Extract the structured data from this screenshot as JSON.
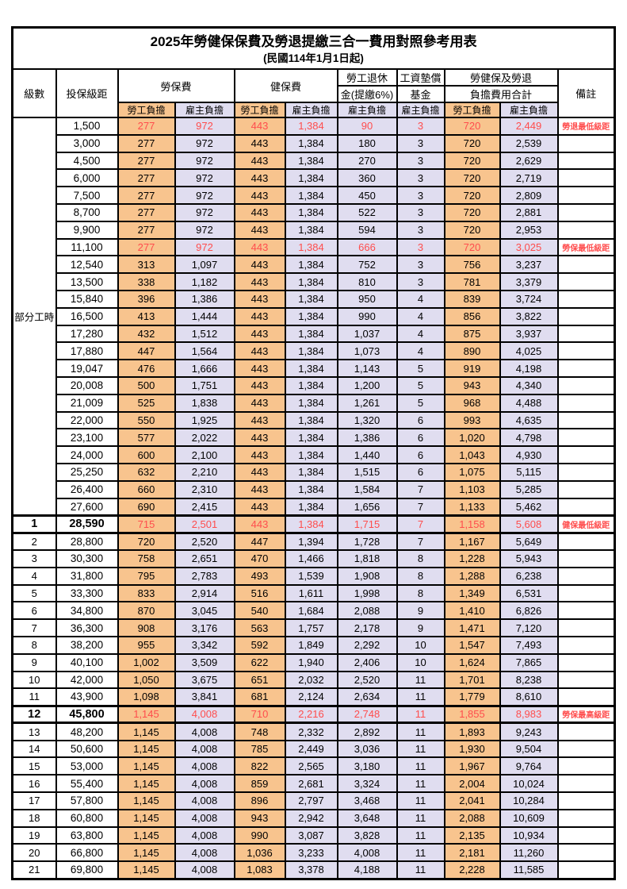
{
  "title": "2025年勞健保保費及勞退提繳三合一費用對照參考用表",
  "subtitle": "(民國114年1月1日起)",
  "header": {
    "level": "級數",
    "bracket": "投保級距",
    "labor_fee": "勞保費",
    "health_fee": "健保費",
    "pension_line1": "勞工退休",
    "pension_line2": "金(提繳6%)",
    "wage_fund_line1": "工資墊償",
    "wage_fund_line2": "基金",
    "total_line1": "勞健保及勞退",
    "total_line2": "負擔費用合計",
    "remark": "備註",
    "employee_label": "勞工負擔",
    "employer_label": "雇主負擔"
  },
  "part_time_label": "部分工時",
  "colors": {
    "employee_bg": "#F8C48E",
    "employer_bg": "#E0DDF0",
    "highlight": "#FF4D4D"
  },
  "rows": [
    {
      "level": "",
      "bracket": "1,500",
      "values": [
        "277",
        "972",
        "443",
        "1,384",
        "90",
        "3",
        "720",
        "2,449"
      ],
      "note": "勞退最低級距",
      "red": true,
      "bold": false
    },
    {
      "level": "",
      "bracket": "3,000",
      "values": [
        "277",
        "972",
        "443",
        "1,384",
        "180",
        "3",
        "720",
        "2,539"
      ],
      "note": "",
      "red": false,
      "bold": false
    },
    {
      "level": "",
      "bracket": "4,500",
      "values": [
        "277",
        "972",
        "443",
        "1,384",
        "270",
        "3",
        "720",
        "2,629"
      ],
      "note": "",
      "red": false,
      "bold": false
    },
    {
      "level": "",
      "bracket": "6,000",
      "values": [
        "277",
        "972",
        "443",
        "1,384",
        "360",
        "3",
        "720",
        "2,719"
      ],
      "note": "",
      "red": false,
      "bold": false
    },
    {
      "level": "",
      "bracket": "7,500",
      "values": [
        "277",
        "972",
        "443",
        "1,384",
        "450",
        "3",
        "720",
        "2,809"
      ],
      "note": "",
      "red": false,
      "bold": false
    },
    {
      "level": "",
      "bracket": "8,700",
      "values": [
        "277",
        "972",
        "443",
        "1,384",
        "522",
        "3",
        "720",
        "2,881"
      ],
      "note": "",
      "red": false,
      "bold": false
    },
    {
      "level": "",
      "bracket": "9,900",
      "values": [
        "277",
        "972",
        "443",
        "1,384",
        "594",
        "3",
        "720",
        "2,953"
      ],
      "note": "",
      "red": false,
      "bold": false
    },
    {
      "level": "",
      "bracket": "11,100",
      "values": [
        "277",
        "972",
        "443",
        "1,384",
        "666",
        "3",
        "720",
        "3,025"
      ],
      "note": "勞保最低級距",
      "red": true,
      "bold": false
    },
    {
      "level": "",
      "bracket": "12,540",
      "values": [
        "313",
        "1,097",
        "443",
        "1,384",
        "752",
        "3",
        "756",
        "3,237"
      ],
      "note": "",
      "red": false,
      "bold": false
    },
    {
      "level": "",
      "bracket": "13,500",
      "values": [
        "338",
        "1,182",
        "443",
        "1,384",
        "810",
        "3",
        "781",
        "3,379"
      ],
      "note": "",
      "red": false,
      "bold": false
    },
    {
      "level": "",
      "bracket": "15,840",
      "values": [
        "396",
        "1,386",
        "443",
        "1,384",
        "950",
        "4",
        "839",
        "3,724"
      ],
      "note": "",
      "red": false,
      "bold": false
    },
    {
      "level": "",
      "bracket": "16,500",
      "values": [
        "413",
        "1,444",
        "443",
        "1,384",
        "990",
        "4",
        "856",
        "3,822"
      ],
      "note": "",
      "red": false,
      "bold": false
    },
    {
      "level": "",
      "bracket": "17,280",
      "values": [
        "432",
        "1,512",
        "443",
        "1,384",
        "1,037",
        "4",
        "875",
        "3,937"
      ],
      "note": "",
      "red": false,
      "bold": false
    },
    {
      "level": "",
      "bracket": "17,880",
      "values": [
        "447",
        "1,564",
        "443",
        "1,384",
        "1,073",
        "4",
        "890",
        "4,025"
      ],
      "note": "",
      "red": false,
      "bold": false
    },
    {
      "level": "",
      "bracket": "19,047",
      "values": [
        "476",
        "1,666",
        "443",
        "1,384",
        "1,143",
        "5",
        "919",
        "4,198"
      ],
      "note": "",
      "red": false,
      "bold": false
    },
    {
      "level": "",
      "bracket": "20,008",
      "values": [
        "500",
        "1,751",
        "443",
        "1,384",
        "1,200",
        "5",
        "943",
        "4,340"
      ],
      "note": "",
      "red": false,
      "bold": false
    },
    {
      "level": "",
      "bracket": "21,009",
      "values": [
        "525",
        "1,838",
        "443",
        "1,384",
        "1,261",
        "5",
        "968",
        "4,488"
      ],
      "note": "",
      "red": false,
      "bold": false
    },
    {
      "level": "",
      "bracket": "22,000",
      "values": [
        "550",
        "1,925",
        "443",
        "1,384",
        "1,320",
        "6",
        "993",
        "4,635"
      ],
      "note": "",
      "red": false,
      "bold": false
    },
    {
      "level": "",
      "bracket": "23,100",
      "values": [
        "577",
        "2,022",
        "443",
        "1,384",
        "1,386",
        "6",
        "1,020",
        "4,798"
      ],
      "note": "",
      "red": false,
      "bold": false
    },
    {
      "level": "",
      "bracket": "24,000",
      "values": [
        "600",
        "2,100",
        "443",
        "1,384",
        "1,440",
        "6",
        "1,043",
        "4,930"
      ],
      "note": "",
      "red": false,
      "bold": false
    },
    {
      "level": "",
      "bracket": "25,250",
      "values": [
        "632",
        "2,210",
        "443",
        "1,384",
        "1,515",
        "6",
        "1,075",
        "5,115"
      ],
      "note": "",
      "red": false,
      "bold": false
    },
    {
      "level": "",
      "bracket": "26,400",
      "values": [
        "660",
        "2,310",
        "443",
        "1,384",
        "1,584",
        "7",
        "1,103",
        "5,285"
      ],
      "note": "",
      "red": false,
      "bold": false
    },
    {
      "level": "",
      "bracket": "27,600",
      "values": [
        "690",
        "2,415",
        "443",
        "1,384",
        "1,656",
        "7",
        "1,133",
        "5,462"
      ],
      "note": "",
      "red": false,
      "bold": false
    },
    {
      "level": "1",
      "bracket": "28,590",
      "values": [
        "715",
        "2,501",
        "443",
        "1,384",
        "1,715",
        "7",
        "1,158",
        "5,608"
      ],
      "note": "健保最低級距",
      "red": true,
      "bold": true
    },
    {
      "level": "2",
      "bracket": "28,800",
      "values": [
        "720",
        "2,520",
        "447",
        "1,394",
        "1,728",
        "7",
        "1,167",
        "5,649"
      ],
      "note": "",
      "red": false,
      "bold": false
    },
    {
      "level": "3",
      "bracket": "30,300",
      "values": [
        "758",
        "2,651",
        "470",
        "1,466",
        "1,818",
        "8",
        "1,228",
        "5,943"
      ],
      "note": "",
      "red": false,
      "bold": false
    },
    {
      "level": "4",
      "bracket": "31,800",
      "values": [
        "795",
        "2,783",
        "493",
        "1,539",
        "1,908",
        "8",
        "1,288",
        "6,238"
      ],
      "note": "",
      "red": false,
      "bold": false
    },
    {
      "level": "5",
      "bracket": "33,300",
      "values": [
        "833",
        "2,914",
        "516",
        "1,611",
        "1,998",
        "8",
        "1,349",
        "6,531"
      ],
      "note": "",
      "red": false,
      "bold": false
    },
    {
      "level": "6",
      "bracket": "34,800",
      "values": [
        "870",
        "3,045",
        "540",
        "1,684",
        "2,088",
        "9",
        "1,410",
        "6,826"
      ],
      "note": "",
      "red": false,
      "bold": false
    },
    {
      "level": "7",
      "bracket": "36,300",
      "values": [
        "908",
        "3,176",
        "563",
        "1,757",
        "2,178",
        "9",
        "1,471",
        "7,120"
      ],
      "note": "",
      "red": false,
      "bold": false
    },
    {
      "level": "8",
      "bracket": "38,200",
      "values": [
        "955",
        "3,342",
        "592",
        "1,849",
        "2,292",
        "10",
        "1,547",
        "7,493"
      ],
      "note": "",
      "red": false,
      "bold": false
    },
    {
      "level": "9",
      "bracket": "40,100",
      "values": [
        "1,002",
        "3,509",
        "622",
        "1,940",
        "2,406",
        "10",
        "1,624",
        "7,865"
      ],
      "note": "",
      "red": false,
      "bold": false
    },
    {
      "level": "10",
      "bracket": "42,000",
      "values": [
        "1,050",
        "3,675",
        "651",
        "2,032",
        "2,520",
        "11",
        "1,701",
        "8,238"
      ],
      "note": "",
      "red": false,
      "bold": false
    },
    {
      "level": "11",
      "bracket": "43,900",
      "values": [
        "1,098",
        "3,841",
        "681",
        "2,124",
        "2,634",
        "11",
        "1,779",
        "8,610"
      ],
      "note": "",
      "red": false,
      "bold": false
    },
    {
      "level": "12",
      "bracket": "45,800",
      "values": [
        "1,145",
        "4,008",
        "710",
        "2,216",
        "2,748",
        "11",
        "1,855",
        "8,983"
      ],
      "note": "勞保最高級距",
      "red": true,
      "bold": true
    },
    {
      "level": "13",
      "bracket": "48,200",
      "values": [
        "1,145",
        "4,008",
        "748",
        "2,332",
        "2,892",
        "11",
        "1,893",
        "9,243"
      ],
      "note": "",
      "red": false,
      "bold": false
    },
    {
      "level": "14",
      "bracket": "50,600",
      "values": [
        "1,145",
        "4,008",
        "785",
        "2,449",
        "3,036",
        "11",
        "1,930",
        "9,504"
      ],
      "note": "",
      "red": false,
      "bold": false
    },
    {
      "level": "15",
      "bracket": "53,000",
      "values": [
        "1,145",
        "4,008",
        "822",
        "2,565",
        "3,180",
        "11",
        "1,967",
        "9,764"
      ],
      "note": "",
      "red": false,
      "bold": false
    },
    {
      "level": "16",
      "bracket": "55,400",
      "values": [
        "1,145",
        "4,008",
        "859",
        "2,681",
        "3,324",
        "11",
        "2,004",
        "10,024"
      ],
      "note": "",
      "red": false,
      "bold": false
    },
    {
      "level": "17",
      "bracket": "57,800",
      "values": [
        "1,145",
        "4,008",
        "896",
        "2,797",
        "3,468",
        "11",
        "2,041",
        "10,284"
      ],
      "note": "",
      "red": false,
      "bold": false
    },
    {
      "level": "18",
      "bracket": "60,800",
      "values": [
        "1,145",
        "4,008",
        "943",
        "2,942",
        "3,648",
        "11",
        "2,088",
        "10,609"
      ],
      "note": "",
      "red": false,
      "bold": false
    },
    {
      "level": "19",
      "bracket": "63,800",
      "values": [
        "1,145",
        "4,008",
        "990",
        "3,087",
        "3,828",
        "11",
        "2,135",
        "10,934"
      ],
      "note": "",
      "red": false,
      "bold": false
    },
    {
      "level": "20",
      "bracket": "66,800",
      "values": [
        "1,145",
        "4,008",
        "1,036",
        "3,233",
        "4,008",
        "11",
        "2,181",
        "11,260"
      ],
      "note": "",
      "red": false,
      "bold": false
    },
    {
      "level": "21",
      "bracket": "69,800",
      "values": [
        "1,145",
        "4,008",
        "1,083",
        "3,378",
        "4,188",
        "11",
        "2,228",
        "11,585"
      ],
      "note": "",
      "red": false,
      "bold": false
    }
  ]
}
